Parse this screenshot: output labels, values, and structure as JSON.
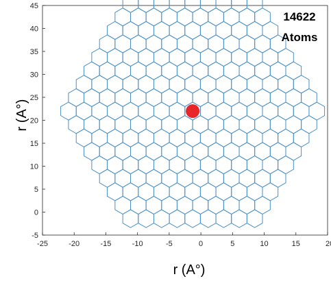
{
  "chart_data": {
    "type": "scatter",
    "xlim": [
      -25,
      20
    ],
    "ylim": [
      -5,
      45
    ],
    "x_ticks": [
      "-25",
      "-20",
      "-15",
      "-10",
      "-5",
      "0",
      "5",
      "10",
      "15",
      "20"
    ],
    "y_ticks": [
      "-5",
      "0",
      "5",
      "10",
      "15",
      "20",
      "25",
      "30",
      "35",
      "40",
      "45"
    ],
    "xlabel": "r (A°)",
    "ylabel": "r (A°)",
    "annotation": [
      "14622",
      "Atoms"
    ],
    "lattice": {
      "shape": "hexagonal honeycomb",
      "center": [
        -1.3,
        22
      ],
      "rings": 8,
      "cell_spacing_x": 2.45,
      "color": "#4a90c8"
    },
    "highlight_point": {
      "x": -1.3,
      "y": 22,
      "color": "#e8262a"
    },
    "grid": false,
    "legend": "none"
  }
}
